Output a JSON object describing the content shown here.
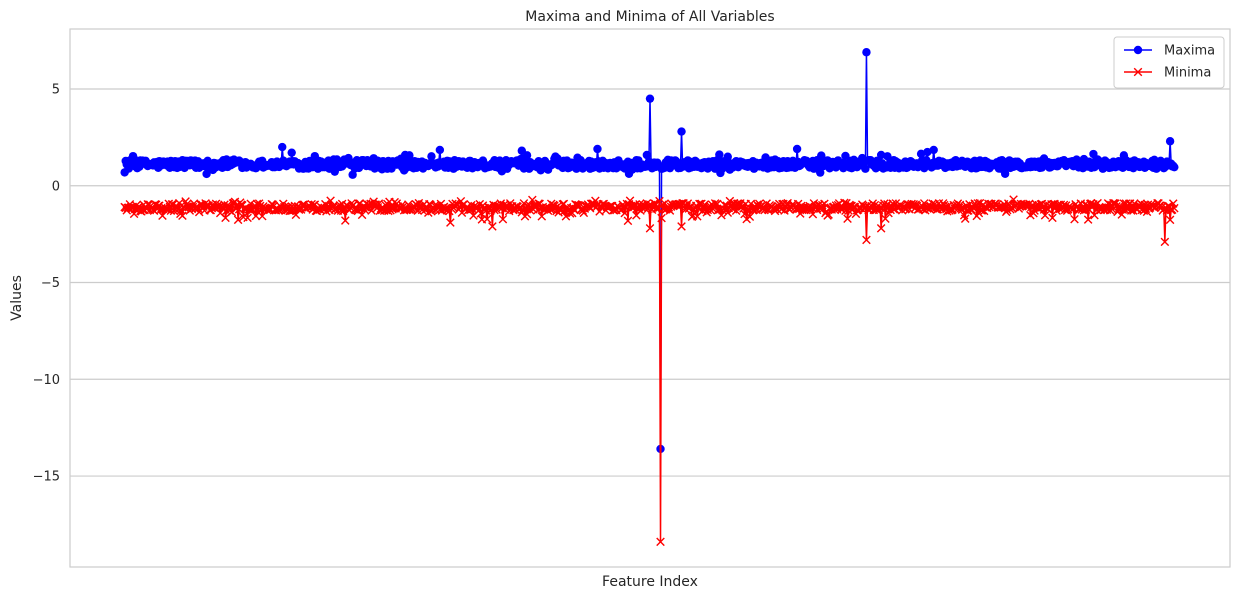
{
  "chart_data": {
    "type": "line",
    "title": "Maxima and Minima of All Variables",
    "xlabel": "Feature Index",
    "ylabel": "Values",
    "ylim": [
      -19.7,
      8.1
    ],
    "xlim": [
      -52,
      1052
    ],
    "yticks": [
      5,
      0,
      -5,
      -10,
      -15
    ],
    "ytick_labels": [
      "5",
      "0",
      "−5",
      "−10",
      "−15"
    ],
    "grid": true,
    "legend_position": "top-right",
    "n_points": 1000,
    "series": [
      {
        "name": "Maxima",
        "color": "#0000ff",
        "marker": "o",
        "baseline": 1.1,
        "spikes": [
          {
            "index": 150,
            "value": 2.0
          },
          {
            "index": 300,
            "value": 1.85
          },
          {
            "index": 450,
            "value": 1.9
          },
          {
            "index": 500,
            "value": 4.5
          },
          {
            "index": 510,
            "value": -13.6
          },
          {
            "index": 530,
            "value": 2.8
          },
          {
            "index": 640,
            "value": 1.9
          },
          {
            "index": 706,
            "value": 6.9
          },
          {
            "index": 770,
            "value": 1.85
          },
          {
            "index": 995,
            "value": 2.3
          }
        ]
      },
      {
        "name": "Minima",
        "color": "#ff0000",
        "marker": "x",
        "baseline": -1.1,
        "spikes": [
          {
            "index": 210,
            "value": -1.8
          },
          {
            "index": 310,
            "value": -1.9
          },
          {
            "index": 350,
            "value": -2.1
          },
          {
            "index": 500,
            "value": -2.2
          },
          {
            "index": 510,
            "value": -18.4
          },
          {
            "index": 530,
            "value": -2.1
          },
          {
            "index": 706,
            "value": -2.8
          },
          {
            "index": 720,
            "value": -2.2
          },
          {
            "index": 990,
            "value": -2.9
          }
        ]
      }
    ]
  }
}
